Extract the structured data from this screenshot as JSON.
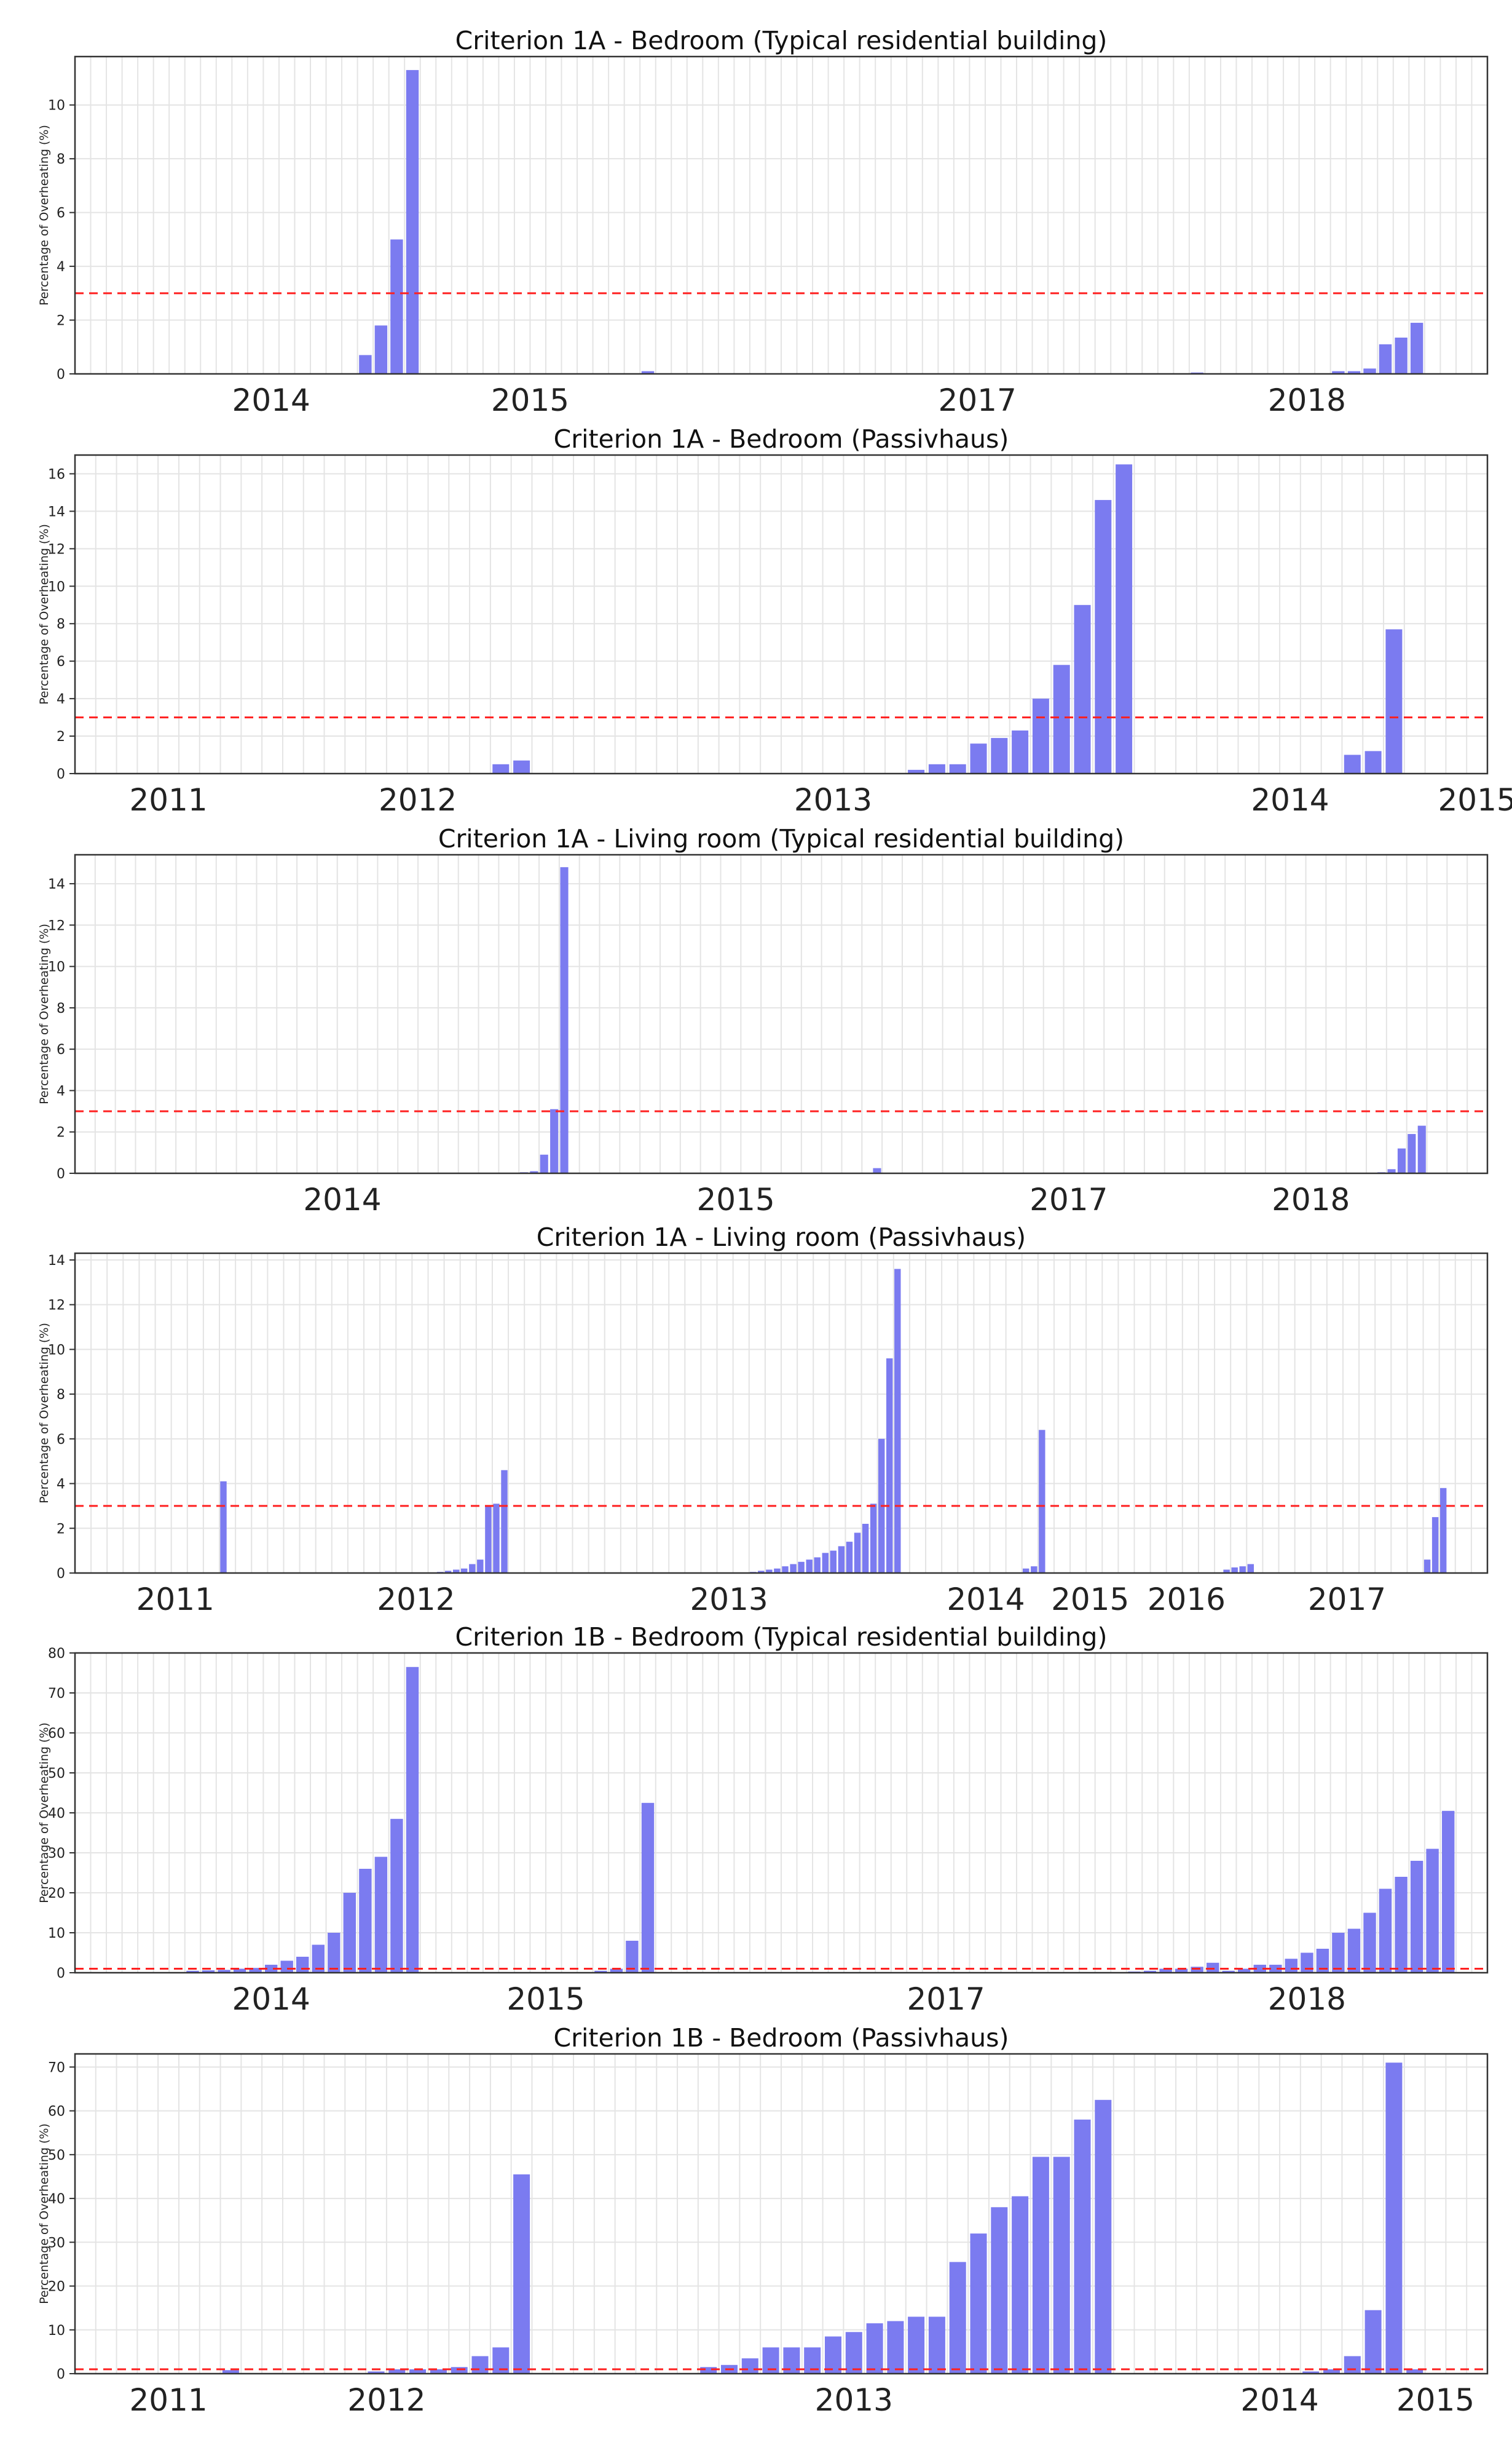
{
  "chart_data": [
    {
      "type": "bar",
      "title": "Criterion 1A - Bedroom (Typical residential building)",
      "ylabel": "Percentage of Overheating (%)",
      "threshold": 3,
      "ylim": [
        0,
        11.8
      ],
      "yticks": [
        0,
        2,
        4,
        6,
        8,
        10
      ],
      "n_slots": 90,
      "xticks": [
        {
          "label": "2014",
          "slot": 12
        },
        {
          "label": "2015",
          "slot": 28.5
        },
        {
          "label": "2017",
          "slot": 57
        },
        {
          "label": "2018",
          "slot": 78
        }
      ],
      "bars": [
        [
          18,
          0.7
        ],
        [
          19,
          1.8
        ],
        [
          20,
          5.0
        ],
        [
          21,
          11.3
        ],
        [
          36,
          0.1
        ],
        [
          71,
          0.05
        ],
        [
          80,
          0.1
        ],
        [
          81,
          0.1
        ],
        [
          82,
          0.2
        ],
        [
          83,
          1.1
        ],
        [
          84,
          1.35
        ],
        [
          85,
          1.9
        ]
      ]
    },
    {
      "type": "bar",
      "title": "Criterion 1A - Bedroom (Passivhaus)",
      "ylabel": "Percentage of Overheating (%)",
      "threshold": 3,
      "ylim": [
        0,
        17
      ],
      "yticks": [
        0,
        2,
        4,
        6,
        8,
        10,
        12,
        14,
        16
      ],
      "n_slots": 68,
      "xticks": [
        {
          "label": "2011",
          "slot": 4
        },
        {
          "label": "2012",
          "slot": 16
        },
        {
          "label": "2013",
          "slot": 36
        },
        {
          "label": "2014",
          "slot": 58
        },
        {
          "label": "2015",
          "slot": 67
        }
      ],
      "bars": [
        [
          20,
          0.5
        ],
        [
          21,
          0.7
        ],
        [
          40,
          0.2
        ],
        [
          41,
          0.5
        ],
        [
          42,
          0.5
        ],
        [
          43,
          1.6
        ],
        [
          44,
          1.9
        ],
        [
          45,
          2.3
        ],
        [
          46,
          4.0
        ],
        [
          47,
          5.8
        ],
        [
          48,
          9.0
        ],
        [
          49,
          14.6
        ],
        [
          50,
          16.5
        ],
        [
          61,
          1.0
        ],
        [
          62,
          1.2
        ],
        [
          63,
          7.7
        ]
      ]
    },
    {
      "type": "bar",
      "title": "Criterion 1A - Living room (Typical residential building)",
      "ylabel": "Percentage of Overheating (%)",
      "threshold": 3,
      "ylim": [
        0,
        15.4
      ],
      "yticks": [
        0,
        2,
        4,
        6,
        8,
        10,
        12,
        14
      ],
      "n_slots": 140,
      "xticks": [
        {
          "label": "2014",
          "slot": 26
        },
        {
          "label": "2015",
          "slot": 65
        },
        {
          "label": "2017",
          "slot": 98
        },
        {
          "label": "2018",
          "slot": 122
        }
      ],
      "bars": [
        [
          44,
          0.05
        ],
        [
          45,
          0.1
        ],
        [
          46,
          0.9
        ],
        [
          47,
          3.1
        ],
        [
          48,
          14.8
        ],
        [
          79,
          0.25
        ],
        [
          129,
          0.05
        ],
        [
          130,
          0.2
        ],
        [
          131,
          1.2
        ],
        [
          132,
          1.9
        ],
        [
          133,
          2.3
        ]
      ]
    },
    {
      "type": "bar",
      "title": "Criterion 1A - Living room (Passivhaus)",
      "ylabel": "Percentage of Overheating (%)",
      "threshold": 3,
      "ylim": [
        0,
        14.3
      ],
      "yticks": [
        0,
        2,
        4,
        6,
        8,
        10,
        12,
        14
      ],
      "n_slots": 176,
      "xticks": [
        {
          "label": "2011",
          "slot": 12
        },
        {
          "label": "2012",
          "slot": 42
        },
        {
          "label": "2013",
          "slot": 81
        },
        {
          "label": "2014",
          "slot": 113
        },
        {
          "label": "2015",
          "slot": 126
        },
        {
          "label": "2016",
          "slot": 138
        },
        {
          "label": "2017",
          "slot": 158
        }
      ],
      "bars": [
        [
          18,
          4.1
        ],
        [
          45,
          0.05
        ],
        [
          46,
          0.1
        ],
        [
          47,
          0.15
        ],
        [
          48,
          0.2
        ],
        [
          49,
          0.4
        ],
        [
          50,
          0.6
        ],
        [
          51,
          3.0
        ],
        [
          52,
          3.1
        ],
        [
          53,
          4.6
        ],
        [
          84,
          0.05
        ],
        [
          85,
          0.1
        ],
        [
          86,
          0.15
        ],
        [
          87,
          0.2
        ],
        [
          88,
          0.3
        ],
        [
          89,
          0.4
        ],
        [
          90,
          0.5
        ],
        [
          91,
          0.6
        ],
        [
          92,
          0.7
        ],
        [
          93,
          0.9
        ],
        [
          94,
          1.0
        ],
        [
          95,
          1.2
        ],
        [
          96,
          1.4
        ],
        [
          97,
          1.8
        ],
        [
          98,
          2.2
        ],
        [
          99,
          3.1
        ],
        [
          100,
          6.0
        ],
        [
          101,
          9.6
        ],
        [
          102,
          13.6
        ],
        [
          118,
          0.2
        ],
        [
          119,
          0.3
        ],
        [
          120,
          6.4
        ],
        [
          143,
          0.15
        ],
        [
          144,
          0.25
        ],
        [
          145,
          0.3
        ],
        [
          146,
          0.4
        ],
        [
          168,
          0.6
        ],
        [
          169,
          2.5
        ],
        [
          170,
          3.8
        ]
      ]
    },
    {
      "type": "bar",
      "title": "Criterion 1B - Bedroom (Typical residential building)",
      "ylabel": "Percentage of Overheating (%)",
      "threshold": 1,
      "ylim": [
        0,
        80
      ],
      "yticks": [
        0,
        10,
        20,
        30,
        40,
        50,
        60,
        70,
        80
      ],
      "n_slots": 90,
      "xticks": [
        {
          "label": "2014",
          "slot": 12
        },
        {
          "label": "2015",
          "slot": 29.5
        },
        {
          "label": "2017",
          "slot": 55
        },
        {
          "label": "2018",
          "slot": 78
        }
      ],
      "bars": [
        [
          7,
          0.5
        ],
        [
          8,
          0.6
        ],
        [
          9,
          0.7
        ],
        [
          10,
          1.0
        ],
        [
          11,
          1.2
        ],
        [
          12,
          2.0
        ],
        [
          13,
          3.0
        ],
        [
          14,
          4.0
        ],
        [
          15,
          7.0
        ],
        [
          16,
          10.0
        ],
        [
          17,
          20.0
        ],
        [
          18,
          26.0
        ],
        [
          19,
          29.0
        ],
        [
          20,
          38.5
        ],
        [
          21,
          76.5
        ],
        [
          33,
          0.5
        ],
        [
          34,
          1.0
        ],
        [
          35,
          8.0
        ],
        [
          36,
          42.5
        ],
        [
          67,
          0.3
        ],
        [
          68,
          0.5
        ],
        [
          69,
          1.0
        ],
        [
          70,
          1.0
        ],
        [
          71,
          1.5
        ],
        [
          72,
          2.5
        ],
        [
          73,
          0.5
        ],
        [
          74,
          1.0
        ],
        [
          75,
          2.0
        ],
        [
          76,
          2.0
        ],
        [
          77,
          3.5
        ],
        [
          78,
          5.0
        ],
        [
          79,
          6.0
        ],
        [
          80,
          10.0
        ],
        [
          81,
          11.0
        ],
        [
          82,
          15.0
        ],
        [
          83,
          21.0
        ],
        [
          84,
          24.0
        ],
        [
          85,
          28.0
        ],
        [
          86,
          31.0
        ],
        [
          87,
          40.5
        ]
      ]
    },
    {
      "type": "bar",
      "title": "Criterion 1B - Bedroom (Passivhaus)",
      "ylabel": "Percentage of Overheating (%)",
      "threshold": 1,
      "ylim": [
        0,
        73
      ],
      "yticks": [
        0,
        10,
        20,
        30,
        40,
        50,
        60,
        70
      ],
      "n_slots": 68,
      "xticks": [
        {
          "label": "2011",
          "slot": 4
        },
        {
          "label": "2012",
          "slot": 14.5
        },
        {
          "label": "2013",
          "slot": 37
        },
        {
          "label": "2014",
          "slot": 57.5
        },
        {
          "label": "2015",
          "slot": 65
        }
      ],
      "bars": [
        [
          7,
          0.8
        ],
        [
          14,
          0.5
        ],
        [
          15,
          1.0
        ],
        [
          16,
          1.0
        ],
        [
          17,
          1.0
        ],
        [
          18,
          1.5
        ],
        [
          19,
          4.0
        ],
        [
          20,
          6.0
        ],
        [
          21,
          45.5
        ],
        [
          30,
          1.5
        ],
        [
          31,
          2.0
        ],
        [
          32,
          3.5
        ],
        [
          33,
          6.0
        ],
        [
          34,
          6.0
        ],
        [
          35,
          6.0
        ],
        [
          36,
          8.5
        ],
        [
          37,
          9.5
        ],
        [
          38,
          11.5
        ],
        [
          39,
          12.0
        ],
        [
          40,
          13.0
        ],
        [
          41,
          13.0
        ],
        [
          42,
          25.5
        ],
        [
          43,
          32.0
        ],
        [
          44,
          38.0
        ],
        [
          45,
          40.5
        ],
        [
          46,
          49.5
        ],
        [
          47,
          49.5
        ],
        [
          48,
          58.0
        ],
        [
          49,
          62.5
        ],
        [
          59,
          0.5
        ],
        [
          60,
          1.0
        ],
        [
          61,
          4.0
        ],
        [
          62,
          14.5
        ],
        [
          63,
          71.0
        ],
        [
          64,
          1.0
        ]
      ]
    }
  ]
}
